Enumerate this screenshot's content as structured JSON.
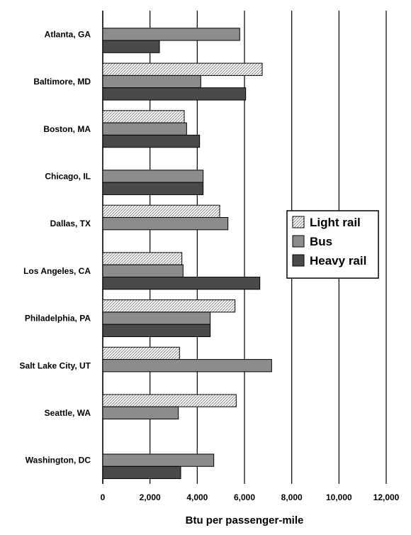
{
  "chart_data": {
    "type": "bar",
    "orientation": "horizontal",
    "xlabel": "Btu per passenger-mile",
    "xlim": [
      0,
      12000
    ],
    "xticks": [
      0,
      2000,
      4000,
      6000,
      8000,
      10000,
      12000
    ],
    "xtick_labels": [
      "0",
      "2,000",
      "4,000",
      "6,000",
      "8,000",
      "10,000",
      "12,000"
    ],
    "grid": "vertical",
    "legend_position": "right",
    "categories": [
      "Atlanta, GA",
      "Baltimore, MD",
      "Boston, MA",
      "Chicago, IL",
      "Dallas, TX",
      "Los Angeles, CA",
      "Philadelphia, PA",
      "Salt Lake City, UT",
      "Seattle, WA",
      "Washington, DC"
    ],
    "series": [
      {
        "name": "Light rail",
        "color": "#d9d9d9",
        "pattern": "hatched",
        "values": [
          null,
          6750,
          3450,
          null,
          4950,
          3350,
          5600,
          3250,
          5650,
          null
        ]
      },
      {
        "name": "Bus",
        "color": "#8c8c8c",
        "values": [
          5800,
          4150,
          3550,
          4250,
          5300,
          3400,
          4550,
          7150,
          3200,
          4700
        ]
      },
      {
        "name": "Heavy rail",
        "color": "#4a4a4a",
        "values": [
          2400,
          6050,
          4100,
          4250,
          null,
          6650,
          4550,
          null,
          null,
          3300
        ]
      }
    ]
  }
}
